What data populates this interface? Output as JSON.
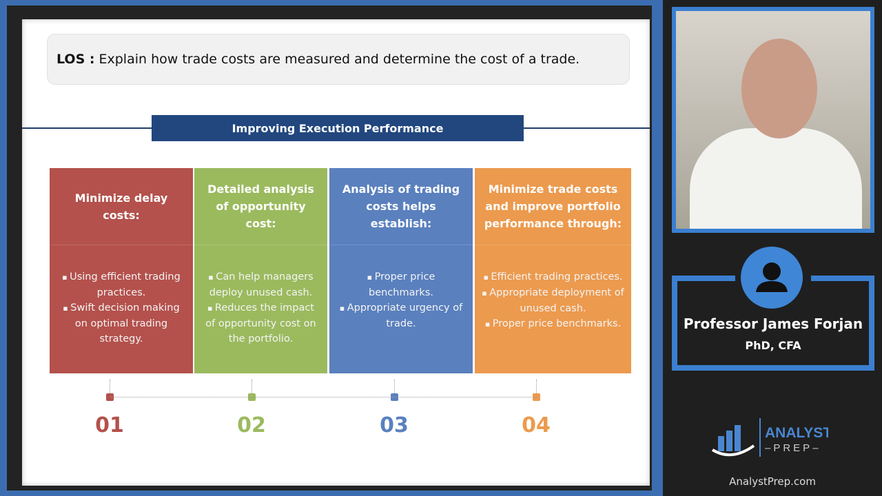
{
  "slide": {
    "los_label": "LOS :",
    "los_text": "Explain how trade costs are measured and determine the cost of a trade.",
    "banner": "Improving Execution Performance",
    "columns": [
      {
        "title": "Minimize delay costs:",
        "color": "#b4514c",
        "number": "01",
        "bullets": [
          "Using efficient trading practices.",
          "Swift decision making on optimal trading strategy."
        ]
      },
      {
        "title": "Detailed analysis of opportunity cost:",
        "color": "#9bba5e",
        "number": "02",
        "bullets": [
          "Can help managers deploy unused cash.",
          "Reduces the impact of opportunity cost on the portfolio."
        ]
      },
      {
        "title": "Analysis of trading costs helps establish:",
        "color": "#5a80be",
        "number": "03",
        "bullets": [
          "Proper price benchmarks.",
          "Appropriate urgency of trade."
        ]
      },
      {
        "title": "Minimize trade costs and improve portfolio performance through:",
        "color": "#ec9a4e",
        "number": "04",
        "bullets": [
          "Efficient trading practices.",
          "Appropriate deployment of unused cash.",
          "Proper price benchmarks."
        ]
      }
    ]
  },
  "presenter": {
    "name": "Professor James Forjan",
    "credentials": "PhD, CFA"
  },
  "brand": {
    "logo_top": "ANALYST",
    "logo_bottom": "PREP",
    "site": "AnalystPrep.com",
    "accent": "#3b7fd0"
  }
}
